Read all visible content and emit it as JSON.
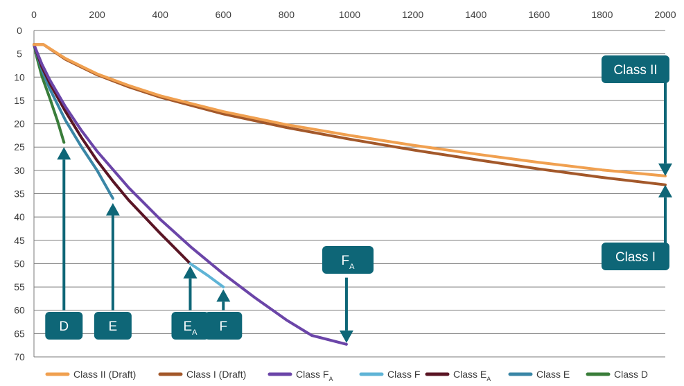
{
  "chart_data": {
    "type": "line",
    "x_ticks": [
      "0",
      "200",
      "400",
      "600",
      "800",
      "1000",
      "1200",
      "1400",
      "1600",
      "1800",
      "2000"
    ],
    "y_ticks": [
      "0",
      "5",
      "10",
      "15",
      "20",
      "25",
      "30",
      "35",
      "40",
      "45",
      "50",
      "55",
      "60",
      "65",
      "70"
    ],
    "xlim": [
      0,
      2000
    ],
    "ylim": [
      0,
      70
    ],
    "y_inverted": true,
    "x_axis_position": "top",
    "grid": "horizontal",
    "legend_position": "bottom",
    "series": [
      {
        "name": "Class II (Draft)",
        "label_main": "Class II (Draft)",
        "label_sub": "",
        "color": "#f0a050",
        "points": [
          [
            0,
            3
          ],
          [
            30,
            3
          ],
          [
            100,
            6
          ],
          [
            200,
            9.3
          ],
          [
            300,
            11.8
          ],
          [
            400,
            14
          ],
          [
            600,
            17.4
          ],
          [
            800,
            20.2
          ],
          [
            1000,
            22.5
          ],
          [
            1200,
            24.6
          ],
          [
            1400,
            26.5
          ],
          [
            1600,
            28.3
          ],
          [
            1800,
            29.9
          ],
          [
            2000,
            31.2
          ]
        ]
      },
      {
        "name": "Class I (Draft)",
        "label_main": "Class I (Draft)",
        "label_sub": "",
        "color": "#a3582a",
        "points": [
          [
            0,
            3
          ],
          [
            30,
            3
          ],
          [
            100,
            6.2
          ],
          [
            200,
            9.5
          ],
          [
            300,
            12.1
          ],
          [
            400,
            14.3
          ],
          [
            600,
            17.9
          ],
          [
            800,
            20.8
          ],
          [
            1000,
            23.3
          ],
          [
            1200,
            25.6
          ],
          [
            1400,
            27.7
          ],
          [
            1600,
            29.7
          ],
          [
            1800,
            31.5
          ],
          [
            2000,
            33.1
          ]
        ]
      },
      {
        "name": "Class FA",
        "label_main": "Class F",
        "label_sub": "A",
        "color": "#6b45a8",
        "points": [
          [
            0,
            3
          ],
          [
            25,
            7.2
          ],
          [
            50,
            10.6
          ],
          [
            100,
            16.4
          ],
          [
            150,
            21.4
          ],
          [
            200,
            25.9
          ],
          [
            300,
            33.7
          ],
          [
            400,
            40.5
          ],
          [
            500,
            46.6
          ],
          [
            600,
            52.2
          ],
          [
            700,
            57.3
          ],
          [
            800,
            62.1
          ],
          [
            880,
            65.4
          ],
          [
            990,
            67.3
          ]
        ]
      },
      {
        "name": "Class F",
        "label_main": "Class F",
        "label_sub": "",
        "color": "#5fb4d6",
        "points": [
          [
            495,
            50
          ],
          [
            550,
            52.5
          ],
          [
            600,
            55
          ]
        ]
      },
      {
        "name": "Class EA",
        "label_main": "Class E",
        "label_sub": "A",
        "color": "#5a1524",
        "points": [
          [
            0,
            3
          ],
          [
            25,
            7.8
          ],
          [
            50,
            11.3
          ],
          [
            100,
            17.4
          ],
          [
            150,
            22.9
          ],
          [
            200,
            27.9
          ],
          [
            250,
            32.3
          ],
          [
            300,
            36.4
          ],
          [
            400,
            43.5
          ],
          [
            495,
            50
          ]
        ]
      },
      {
        "name": "Class E",
        "label_main": "Class E",
        "label_sub": "",
        "color": "#3a86a6",
        "points": [
          [
            0,
            3
          ],
          [
            25,
            8.4
          ],
          [
            50,
            12.5
          ],
          [
            100,
            19.3
          ],
          [
            150,
            24.9
          ],
          [
            200,
            30
          ],
          [
            250,
            36
          ]
        ]
      },
      {
        "name": "Class D",
        "label_main": "Class D",
        "label_sub": "",
        "color": "#3a7d3a",
        "points": [
          [
            0,
            3
          ],
          [
            10,
            6
          ],
          [
            25,
            9.8
          ],
          [
            50,
            14.5
          ],
          [
            75,
            19.5
          ],
          [
            95,
            24
          ]
        ]
      }
    ]
  },
  "callouts": {
    "color": "#0e6677",
    "items": [
      {
        "name": "callout-class-ii",
        "text": "Class II",
        "sub": "",
        "arrow": "down",
        "x": 2000,
        "y": 31.2,
        "start_y": 10.5
      },
      {
        "name": "callout-class-i",
        "text": "Class I",
        "sub": "",
        "arrow": "up",
        "x": 2000,
        "y": 33.1,
        "start_y": 45.8
      },
      {
        "name": "callout-fa",
        "text": "F",
        "sub": "A",
        "arrow": "down",
        "x": 990,
        "y": 67,
        "start_y": 53
      },
      {
        "name": "callout-d",
        "text": "D",
        "sub": "",
        "arrow": "up",
        "x": 95,
        "y": 25,
        "start_y": 60
      },
      {
        "name": "callout-e",
        "text": "E",
        "sub": "",
        "arrow": "up",
        "x": 250,
        "y": 37,
        "start_y": 60
      },
      {
        "name": "callout-ea",
        "text": "E",
        "sub": "A",
        "arrow": "up",
        "x": 495,
        "y": 50.5,
        "start_y": 60
      },
      {
        "name": "callout-f",
        "text": "F",
        "sub": "",
        "arrow": "up",
        "x": 600,
        "y": 55.5,
        "start_y": 60
      }
    ]
  },
  "colors": {
    "gridline": "#7a7a7a",
    "axis_text": "#3a3a3a",
    "callout_fill": "#0e6677"
  }
}
